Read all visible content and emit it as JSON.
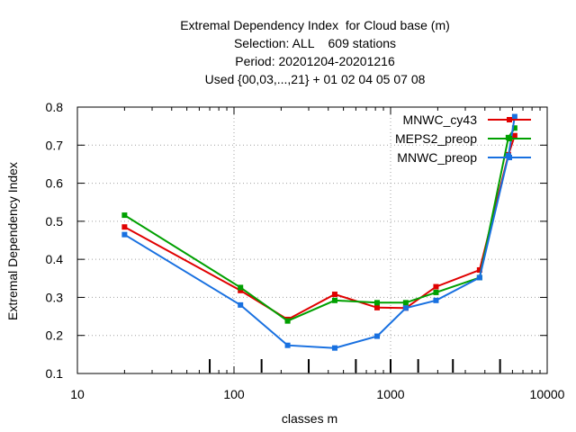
{
  "chart_data": {
    "type": "line",
    "title_lines": [
      "Extremal Dependency Index  for Cloud base (m)",
      "Selection: ALL    609 stations",
      "Period: 20201204-20201216",
      "Used {00,03,...,21} + 01 02 04 05 07 08"
    ],
    "xlabel": "classes m",
    "ylabel": "Extremal Dependency Index",
    "x_scale": "log",
    "xlim": [
      10,
      10000
    ],
    "ylim": [
      0.1,
      0.8
    ],
    "x_ticks": [
      10,
      100,
      1000,
      10000
    ],
    "x_tick_labels": [
      "10",
      "100",
      "1000",
      "10000"
    ],
    "y_ticks": [
      0.1,
      0.2,
      0.3,
      0.4,
      0.5,
      0.6,
      0.7,
      0.8
    ],
    "y_tick_labels": [
      "0.1",
      "0.2",
      "0.3",
      "0.4",
      "0.5",
      "0.6",
      "0.7",
      "0.8"
    ],
    "grid": true,
    "legend_position": "top-right",
    "class_markers": [
      70,
      150,
      300,
      600,
      1000,
      1500,
      2500,
      5000
    ],
    "x": [
      20,
      110,
      220,
      440,
      820,
      1250,
      1950,
      3700,
      5650,
      6200
    ],
    "series": [
      {
        "name": "MNWC_cy43",
        "color": "#e00000",
        "values": [
          0.485,
          0.318,
          0.242,
          0.308,
          0.273,
          0.272,
          0.328,
          0.372,
          0.675,
          0.725
        ]
      },
      {
        "name": "MEPS2_preop",
        "color": "#00a000",
        "values": [
          0.516,
          0.326,
          0.238,
          0.292,
          0.286,
          0.286,
          0.313,
          0.352,
          0.72,
          0.745
        ]
      },
      {
        "name": "MNWC_preop",
        "color": "#1870e0",
        "values": [
          0.465,
          0.28,
          0.174,
          0.167,
          0.198,
          0.272,
          0.292,
          0.352,
          0.672,
          0.775
        ]
      }
    ]
  }
}
